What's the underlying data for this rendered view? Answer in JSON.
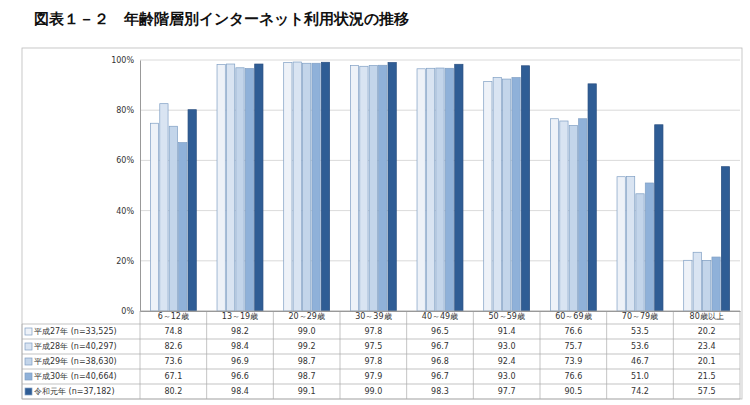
{
  "chart_data": {
    "type": "bar",
    "title": "図表１－２　年齢階層別インターネット利用状況の推移",
    "categories": [
      "6～12歳",
      "13～19歳",
      "20～29歳",
      "30～39歳",
      "40～49歳",
      "50～59歳",
      "60～69歳",
      "70～79歳",
      "80歳以上"
    ],
    "series": [
      {
        "name": "平成27年 (n=33,525)",
        "color": "#eef2f8",
        "values": [
          74.8,
          98.2,
          99.0,
          97.8,
          96.5,
          91.4,
          76.6,
          53.5,
          20.2
        ],
        "value_labels": [
          "74.8",
          "98.2",
          "99.0",
          "97.8",
          "96.5",
          "91.4",
          "76.6",
          "53.5",
          "20.2"
        ]
      },
      {
        "name": "平成28年 (n=40,297)",
        "color": "#d9e4f2",
        "values": [
          82.6,
          98.4,
          99.2,
          97.5,
          96.7,
          93.0,
          75.7,
          53.6,
          23.4
        ],
        "value_labels": [
          "82.6",
          "98.4",
          "99.2",
          "97.5",
          "96.7",
          "93.0",
          "75.7",
          "53.6",
          "23.4"
        ]
      },
      {
        "name": "平成29年 (n=38,630)",
        "color": "#c3d5ea",
        "values": [
          73.6,
          96.9,
          98.7,
          97.8,
          96.8,
          92.4,
          73.9,
          46.7,
          20.1
        ],
        "value_labels": [
          "73.6",
          "96.9",
          "98.7",
          "97.8",
          "96.8",
          "92.4",
          "73.9",
          "46.7",
          "20.1"
        ]
      },
      {
        "name": "平成30年 (n=40,664)",
        "color": "#8fb1d9",
        "values": [
          67.1,
          96.6,
          98.7,
          97.9,
          96.7,
          93.0,
          76.6,
          51.0,
          21.5
        ],
        "value_labels": [
          "67.1",
          "96.6",
          "98.7",
          "97.9",
          "96.7",
          "93.0",
          "76.6",
          "51.0",
          "21.5"
        ]
      },
      {
        "name": "令和元年 (n=37,182)",
        "color": "#2f5d95",
        "values": [
          80.2,
          98.4,
          99.1,
          99.0,
          98.3,
          97.7,
          90.5,
          74.2,
          57.5
        ],
        "value_labels": [
          "80.2",
          "98.4",
          "99.1",
          "99.0",
          "98.3",
          "97.7",
          "90.5",
          "74.2",
          "57.5"
        ]
      }
    ],
    "ylim": [
      0,
      100
    ],
    "yticks": [
      {
        "value": 0,
        "label": "0%"
      },
      {
        "value": 20,
        "label": "20%"
      },
      {
        "value": 40,
        "label": "40%"
      },
      {
        "value": 60,
        "label": "60%"
      },
      {
        "value": 80,
        "label": "80%"
      },
      {
        "value": 100,
        "label": "100%"
      }
    ],
    "grid": true
  }
}
